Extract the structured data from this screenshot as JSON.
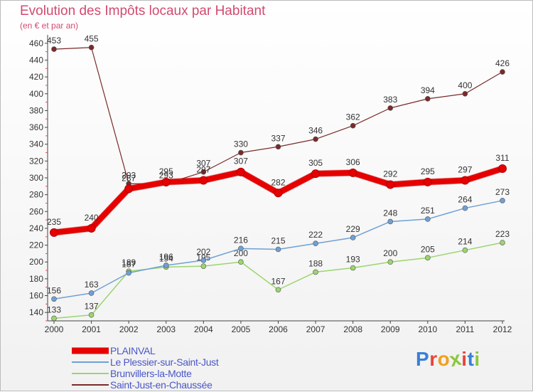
{
  "header": {
    "title": "Evolution des Impôts locaux par Habitant",
    "subtitle": "(en € et par an)"
  },
  "logo": {
    "text": "Proxiti",
    "colors": [
      "#3a7fd8",
      "#e8443a",
      "#f0a020",
      "#8cc63f",
      "#e8443a",
      "#3a7fd8",
      "#8cc63f"
    ]
  },
  "chart_data": {
    "type": "line",
    "categories": [
      "2000",
      "2001",
      "2002",
      "2003",
      "2004",
      "2005",
      "2006",
      "2007",
      "2008",
      "2009",
      "2010",
      "2011",
      "2012"
    ],
    "ylim": [
      130,
      470
    ],
    "yticks": [
      140,
      160,
      180,
      200,
      220,
      240,
      260,
      280,
      300,
      320,
      340,
      360,
      380,
      400,
      420,
      440,
      460
    ],
    "grid": false,
    "legend_position": "bottom-left",
    "series": [
      {
        "name": "Saint-Just-en-Chaussée",
        "color": "#7a2a2a",
        "width": 1.2,
        "values": [
          453,
          455,
          293,
          293,
          307,
          330,
          337,
          346,
          362,
          383,
          394,
          400,
          426
        ],
        "labels": [
          "453",
          "455",
          "293",
          "293",
          "307",
          "330",
          "337",
          "346",
          "362",
          "383",
          "394",
          "400",
          "426"
        ]
      },
      {
        "name": "Brunvillers-la-Motte",
        "color": "#9bd56e",
        "width": 1.5,
        "values": [
          133,
          137,
          189,
          194,
          195,
          200,
          167,
          188,
          193,
          200,
          205,
          214,
          223
        ],
        "labels": [
          "133",
          "137",
          "189",
          "194",
          "195",
          "200",
          "167",
          "188",
          "193",
          "200",
          "205",
          "214",
          "223"
        ]
      },
      {
        "name": "Le Plessier-sur-Saint-Just",
        "color": "#6fa0d4",
        "width": 1.5,
        "values": [
          156,
          163,
          187,
          196,
          202,
          216,
          215,
          222,
          229,
          248,
          251,
          264,
          273
        ],
        "labels": [
          "156",
          "163",
          "187",
          "196",
          "202",
          "216",
          "215",
          "222",
          "229",
          "248",
          "251",
          "264",
          "273"
        ]
      },
      {
        "name": "PLAINVAL",
        "color": "#e60000",
        "width": 8,
        "values": [
          235,
          240,
          287,
          295,
          297,
          307,
          282,
          305,
          306,
          292,
          295,
          297,
          311
        ],
        "labels": [
          "235",
          "240",
          "287",
          "295",
          "297",
          "307",
          "282",
          "305",
          "306",
          "292",
          "295",
          "297",
          "311"
        ]
      }
    ],
    "legend_order": [
      "PLAINVAL",
      "Le Plessier-sur-Saint-Just",
      "Brunvillers-la-Motte",
      "Saint-Just-en-Chaussée"
    ]
  }
}
